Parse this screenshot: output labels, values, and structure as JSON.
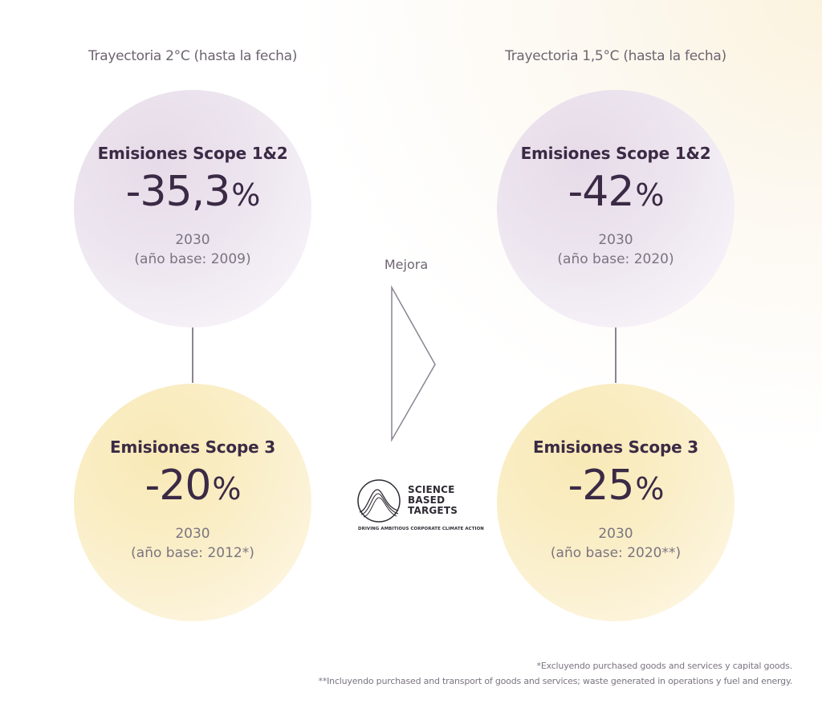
{
  "columns": [
    {
      "title": "Trayectoria 2°C (hasta la fecha)",
      "scope12": {
        "title": "Emisiones Scope 1&2",
        "value": "-35,3",
        "unit": "%",
        "year": "2030",
        "base": "(año base: 2009)"
      },
      "scope3": {
        "title": "Emisiones Scope 3",
        "value": "-20",
        "unit": "%",
        "year": "2030",
        "base": "(año base: 2012*)"
      }
    },
    {
      "title": "Trayectoria 1,5°C (hasta la fecha)",
      "scope12": {
        "title": "Emisiones Scope 1&2",
        "value": "-42",
        "unit": "%",
        "year": "2030",
        "base": "(año base: 2020)"
      },
      "scope3": {
        "title": "Emisiones Scope 3",
        "value": "-25",
        "unit": "%",
        "year": "2030",
        "base": "(año base: 2020**)"
      }
    }
  ],
  "middle": {
    "label": "Mejora",
    "arrow_icon": "triangle-right-outline-icon"
  },
  "logo": {
    "line1": "SCIENCE",
    "line2": "BASED",
    "line3": "TARGETS",
    "tagline": "DRIVING AMBITIOUS CORPORATE CLIMATE ACTION"
  },
  "footnotes": {
    "note1": "*Excluyendo purchased goods and services y capital goods.",
    "note2": "**Incluyendo purchased and transport of goods and services; waste generated in operations y fuel and energy."
  },
  "colors": {
    "text_dark": "#3b2a45",
    "purple_circle": "#e6dce9",
    "yellow_circle": "#f8e9b6",
    "muted_text": "#7b7480"
  }
}
